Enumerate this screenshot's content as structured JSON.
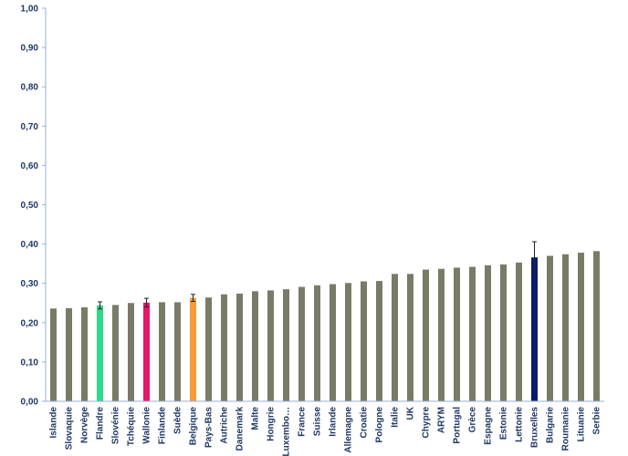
{
  "chart_data": {
    "type": "bar",
    "title": "",
    "xlabel": "",
    "ylabel": "",
    "ylim": [
      0,
      1
    ],
    "yticks": [
      "0,00",
      "0,10",
      "0,20",
      "0,30",
      "0,40",
      "0,50",
      "0,60",
      "0,70",
      "0,80",
      "0,90",
      "1,00"
    ],
    "grid": false,
    "legend": "none",
    "categories": [
      "Islande",
      "Slovaquie",
      "Norvège",
      "Flandre",
      "Slovénie",
      "Tchéquie",
      "Wallonie",
      "Finlande",
      "Suède",
      "Belgique",
      "Pays-Bas",
      "Autriche",
      "Danemark",
      "Malte",
      "Hongrie",
      "Luxembo…",
      "France",
      "Suisse",
      "Irlande",
      "Allemagne",
      "Croatie",
      "Pologne",
      "Italie",
      "UK",
      "Chypre",
      "ARYM",
      "Portugal",
      "Grèce",
      "Espagne",
      "Estonie",
      "Lettonie",
      "Bruxelles",
      "Bulgarie",
      "Roumanie",
      "Lituanie",
      "Serbie"
    ],
    "values": [
      0.236,
      0.237,
      0.239,
      0.244,
      0.245,
      0.25,
      0.251,
      0.252,
      0.252,
      0.263,
      0.264,
      0.272,
      0.274,
      0.28,
      0.282,
      0.285,
      0.291,
      0.295,
      0.298,
      0.301,
      0.305,
      0.306,
      0.324,
      0.324,
      0.335,
      0.337,
      0.34,
      0.342,
      0.346,
      0.348,
      0.353,
      0.366,
      0.37,
      0.374,
      0.378,
      0.382
    ],
    "errors": [
      null,
      null,
      null,
      0.009,
      null,
      null,
      0.011,
      null,
      null,
      0.009,
      null,
      null,
      null,
      null,
      null,
      null,
      null,
      null,
      null,
      null,
      null,
      null,
      null,
      null,
      null,
      null,
      null,
      null,
      null,
      null,
      null,
      0.04,
      null,
      null,
      null,
      null
    ],
    "colors": {
      "default": "#7a7a68",
      "Flandre": "#2ed98a",
      "Wallonie": "#e8156b",
      "Belgique": "#f99a3a",
      "Bruxelles": "#0a1a6e"
    },
    "axis_color": "#9ab0d0",
    "text_color": "#1f3864"
  }
}
